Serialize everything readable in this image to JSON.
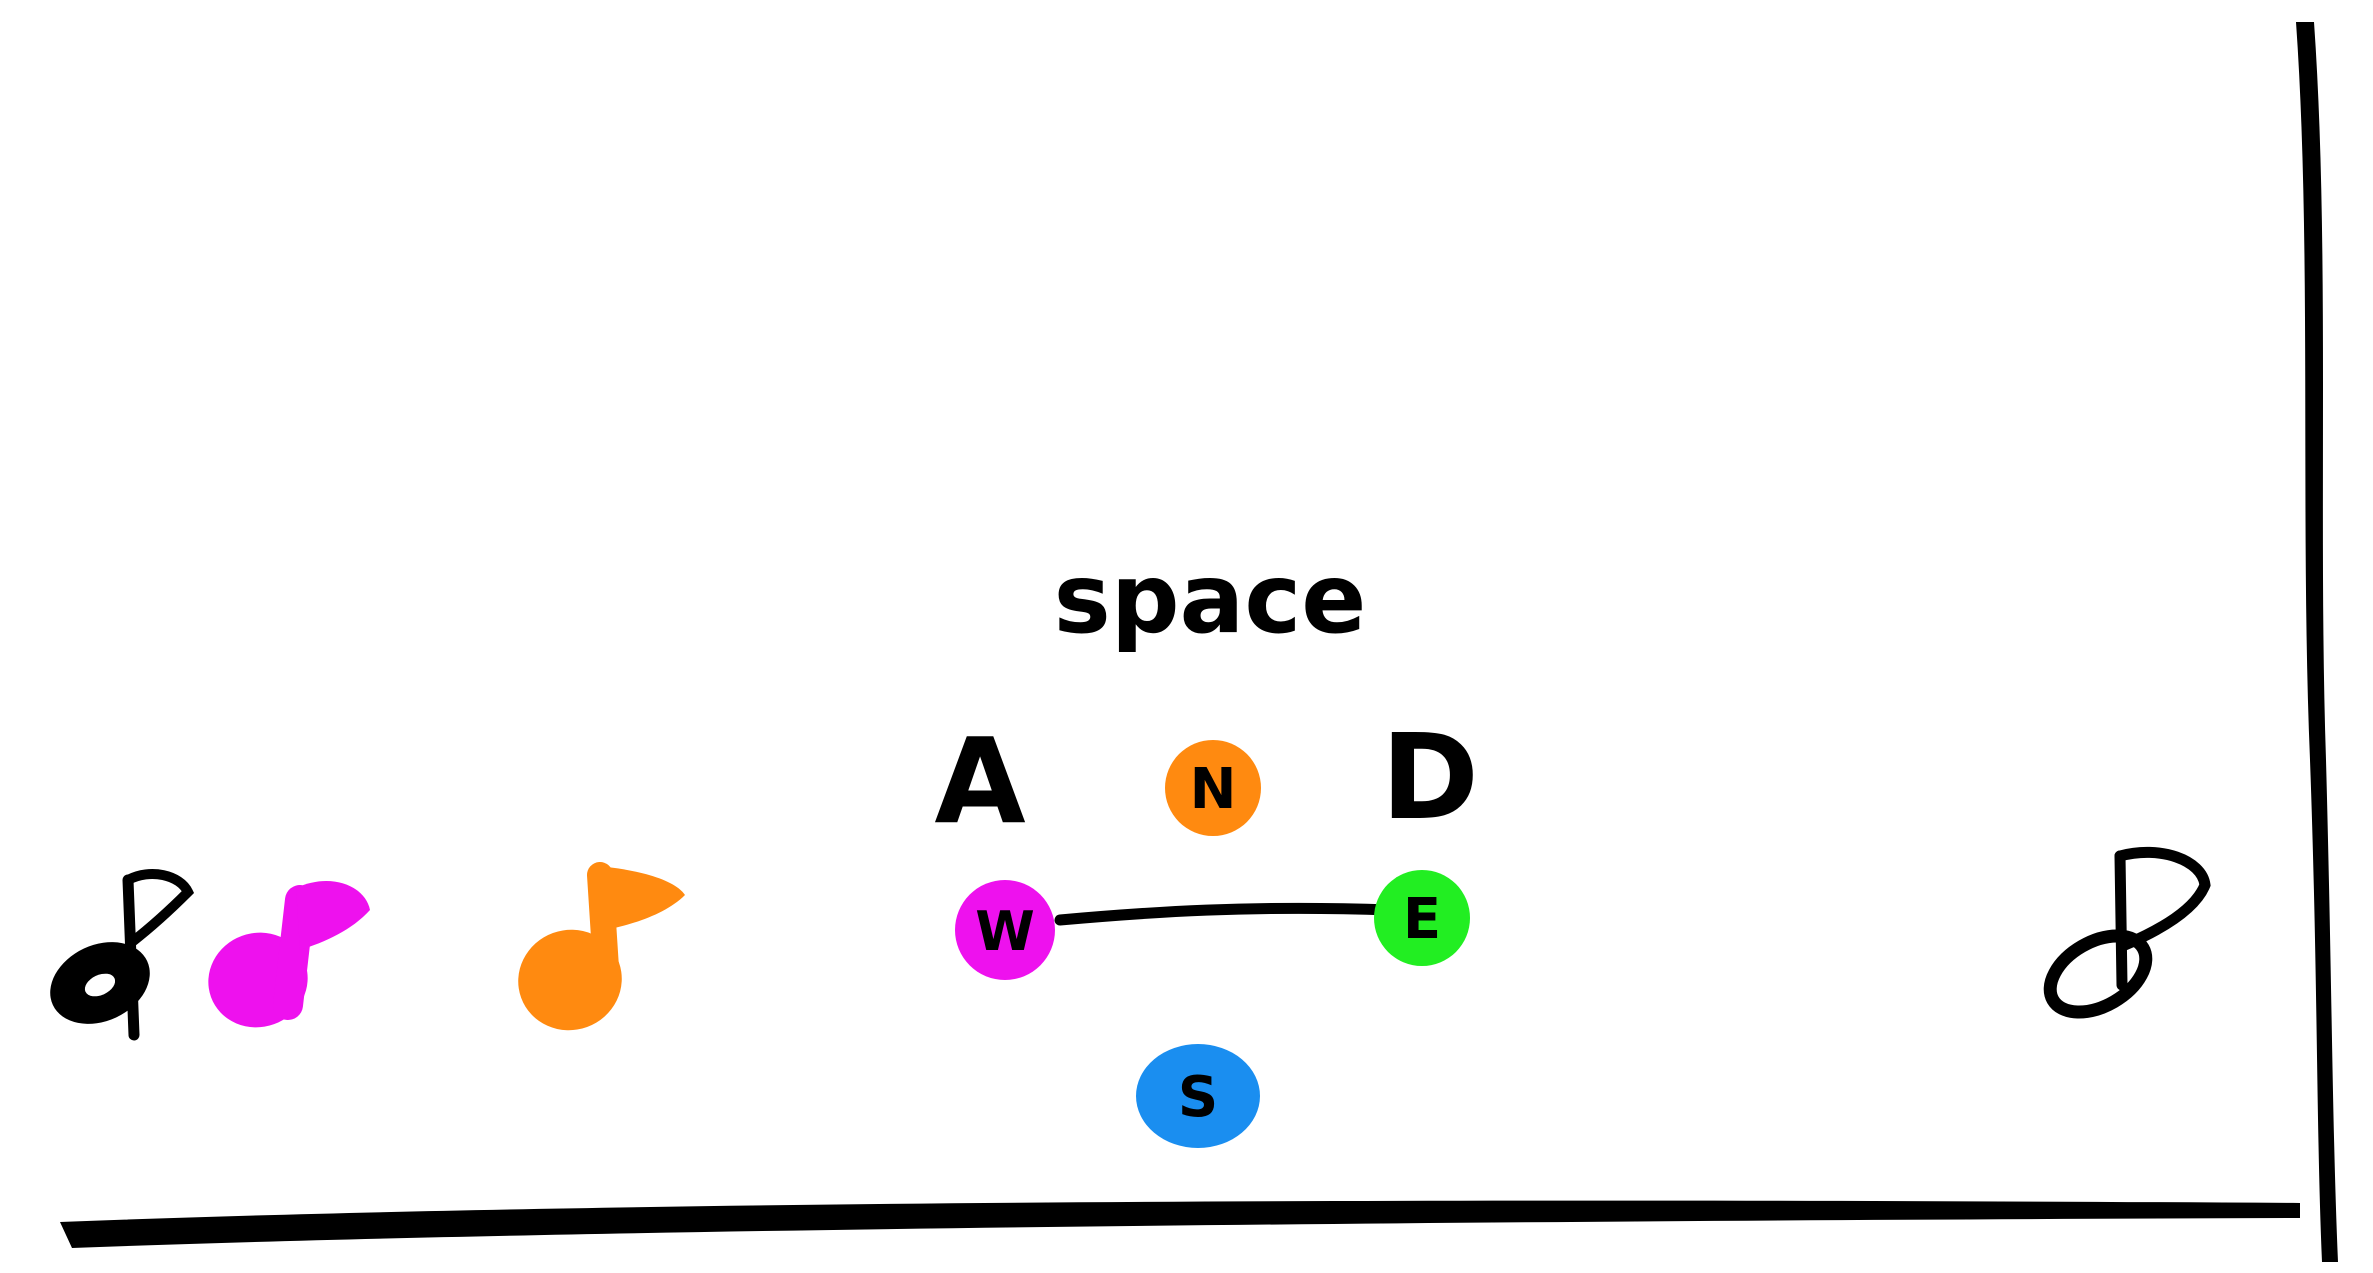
{
  "controls": {
    "space_label": "space",
    "left_label": "A",
    "right_label": "D",
    "dir_north": "N",
    "dir_west": "W",
    "dir_east": "E",
    "dir_south": "S"
  },
  "colors": {
    "ink": "#000000",
    "magenta": "#ee11ee",
    "orange": "#ff8a10",
    "green": "#22ee22",
    "blue": "#1a8ef0",
    "background": "#ffffff"
  },
  "icons": {
    "note_black": "eighth-note-icon",
    "note_magenta": "eighth-note-icon",
    "note_orange": "eighth-note-icon",
    "note_goal": "hollow-note-icon"
  }
}
